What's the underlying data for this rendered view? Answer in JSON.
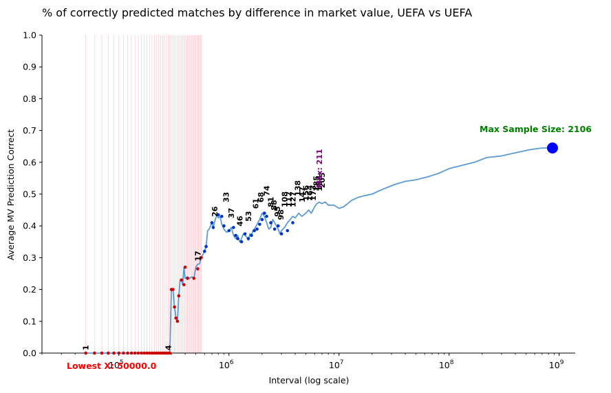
{
  "chart_data": {
    "type": "line",
    "title": "% of correctly predicted matches by difference in market value, UEFA vs UEFA",
    "xlabel": "Interval (log scale)",
    "ylabel": "Average MV Prediction Correct",
    "x_scale": "log",
    "xlim": [
      20000,
      1400000000
    ],
    "ylim": [
      0,
      1.0
    ],
    "x_ticks": [
      {
        "value": 100000,
        "base": "10",
        "exp": "5"
      },
      {
        "value": 1000000,
        "base": "10",
        "exp": "6"
      },
      {
        "value": 10000000,
        "base": "10",
        "exp": "7"
      },
      {
        "value": 100000000,
        "base": "10",
        "exp": "8"
      },
      {
        "value": 1000000000,
        "base": "10",
        "exp": "9"
      }
    ],
    "y_ticks": [
      "0.0",
      "0.1",
      "0.2",
      "0.3",
      "0.4",
      "0.5",
      "0.6",
      "0.7",
      "0.8",
      "0.9",
      "1.0"
    ],
    "line_color": "#5b9bd5",
    "vline_color": "#ffb6c1",
    "series": [
      {
        "x": [
          50000,
          60000,
          70000,
          80000,
          90000,
          100000,
          110000,
          120000,
          130000,
          140000,
          150000,
          160000,
          170000,
          180000,
          190000,
          200000,
          210000,
          220000,
          230000,
          240000,
          250000,
          260000,
          270000,
          280000,
          290000,
          300000,
          310000,
          320000,
          330000,
          340000,
          350000,
          360000,
          370000,
          380000,
          390000,
          400000,
          420000,
          440000,
          460000,
          480000,
          500000,
          520000,
          540000,
          560000,
          600000,
          620000,
          640000,
          660000,
          700000,
          720000,
          750000,
          780000,
          800000,
          830000,
          860000,
          900000,
          950000,
          1000000,
          1050000,
          1100000,
          1150000,
          1200000,
          1250000,
          1300000,
          1350000,
          1400000,
          1450000,
          1500000,
          1550000,
          1600000,
          1650000,
          1700000,
          1800000,
          1900000,
          2000000,
          2100000,
          2200000,
          2300000,
          2400000,
          2500000,
          2600000,
          2700000,
          2800000,
          2900000,
          3000000,
          3200000,
          3400000,
          3600000,
          3800000,
          4000000,
          4300000,
          4600000,
          5000000,
          5300000,
          5600000,
          6000000,
          6300000,
          6600000,
          7000000,
          7500000,
          8000000,
          9000000,
          10000000,
          11000000,
          12000000,
          13000000,
          15000000,
          17000000,
          20000000,
          23000000,
          27000000,
          32000000,
          40000000,
          50000000,
          65000000,
          80000000,
          100000000,
          130000000,
          170000000,
          220000000,
          300000000,
          400000000,
          550000000,
          700000000,
          870000000
        ],
        "y": [
          0,
          0,
          0,
          0,
          0,
          0,
          0,
          0,
          0,
          0,
          0,
          0,
          0,
          0,
          0,
          0,
          0,
          0,
          0,
          0,
          0,
          0,
          0,
          0,
          0.0,
          0.2,
          0.2,
          0.145,
          0.11,
          0.1,
          0.18,
          0.23,
          0.23,
          0.215,
          0.27,
          0.235,
          0.24,
          0.235,
          0.24,
          0.235,
          0.27,
          0.28,
          0.28,
          0.3,
          0.32,
          0.335,
          0.385,
          0.39,
          0.41,
          0.395,
          0.42,
          0.435,
          0.425,
          0.43,
          0.405,
          0.39,
          0.38,
          0.385,
          0.395,
          0.37,
          0.36,
          0.37,
          0.35,
          0.36,
          0.375,
          0.37,
          0.365,
          0.355,
          0.375,
          0.37,
          0.385,
          0.39,
          0.405,
          0.42,
          0.44,
          0.43,
          0.41,
          0.39,
          0.395,
          0.42,
          0.41,
          0.4,
          0.39,
          0.375,
          0.385,
          0.395,
          0.41,
          0.42,
          0.43,
          0.425,
          0.44,
          0.43,
          0.44,
          0.45,
          0.44,
          0.46,
          0.47,
          0.475,
          0.47,
          0.475,
          0.465,
          0.465,
          0.455,
          0.46,
          0.47,
          0.48,
          0.49,
          0.495,
          0.5,
          0.51,
          0.52,
          0.53,
          0.54,
          0.545,
          0.555,
          0.565,
          0.58,
          0.59,
          0.6,
          0.615,
          0.62,
          0.63,
          0.64,
          0.645,
          0.645
        ]
      }
    ],
    "red_points": {
      "x": [
        50000,
        60000,
        70000,
        80000,
        90000,
        100000,
        110000,
        120000,
        130000,
        140000,
        150000,
        160000,
        170000,
        180000,
        190000,
        200000,
        210000,
        220000,
        230000,
        240000,
        250000,
        260000,
        270000,
        280000,
        290000,
        300000,
        310000,
        320000,
        330000,
        340000,
        350000,
        370000,
        390000,
        400000,
        420000,
        480000,
        520000,
        560000
      ],
      "y": [
        0,
        0,
        0,
        0,
        0,
        0,
        0,
        0,
        0,
        0,
        0,
        0,
        0,
        0,
        0,
        0,
        0,
        0,
        0,
        0,
        0,
        0,
        0,
        0,
        0,
        0.2,
        0.2,
        0.145,
        0.11,
        0.1,
        0.18,
        0.23,
        0.215,
        0.27,
        0.235,
        0.235,
        0.265,
        0.3
      ]
    },
    "blue_points": {
      "x": [
        600000,
        620000,
        700000,
        720000,
        800000,
        860000,
        900000,
        1000000,
        1100000,
        1150000,
        1200000,
        1300000,
        1400000,
        1500000,
        1600000,
        1700000,
        1800000,
        1900000,
        2000000,
        2100000,
        2200000,
        2400000,
        2600000,
        2800000,
        3000000,
        3400000,
        3800000
      ],
      "y": [
        0.32,
        0.335,
        0.41,
        0.395,
        0.435,
        0.43,
        0.4,
        0.385,
        0.395,
        0.37,
        0.36,
        0.35,
        0.375,
        0.36,
        0.37,
        0.385,
        0.39,
        0.405,
        0.42,
        0.44,
        0.43,
        0.41,
        0.39,
        0.4,
        0.375,
        0.385,
        0.41
      ]
    },
    "annotations": [
      {
        "text": "1",
        "x": 50000,
        "y": 0.0
      },
      {
        "text": "4",
        "x": 280000,
        "y": 0.0
      },
      {
        "text": "17",
        "x": 520000,
        "y": 0.28
      },
      {
        "text": "26",
        "x": 740000,
        "y": 0.42
      },
      {
        "text": "33",
        "x": 940000,
        "y": 0.465
      },
      {
        "text": "37",
        "x": 1050000,
        "y": 0.415
      },
      {
        "text": "46",
        "x": 1250000,
        "y": 0.39
      },
      {
        "text": "53",
        "x": 1500000,
        "y": 0.405
      },
      {
        "text": "61",
        "x": 1750000,
        "y": 0.445
      },
      {
        "text": "68",
        "x": 1950000,
        "y": 0.465
      },
      {
        "text": "74",
        "x": 2200000,
        "y": 0.485
      },
      {
        "text": "81",
        "x": 2400000,
        "y": 0.45
      },
      {
        "text": "88",
        "x": 2550000,
        "y": 0.44
      },
      {
        "text": "95",
        "x": 2750000,
        "y": 0.42
      },
      {
        "text": "98",
        "x": 2950000,
        "y": 0.41
      },
      {
        "text": "108",
        "x": 3200000,
        "y": 0.45
      },
      {
        "text": "117",
        "x": 3500000,
        "y": 0.45
      },
      {
        "text": "127",
        "x": 3800000,
        "y": 0.45
      },
      {
        "text": "138",
        "x": 4200000,
        "y": 0.485
      },
      {
        "text": "147",
        "x": 4600000,
        "y": 0.465
      },
      {
        "text": "156",
        "x": 5000000,
        "y": 0.47
      },
      {
        "text": "164",
        "x": 5400000,
        "y": 0.47
      },
      {
        "text": "173",
        "x": 5800000,
        "y": 0.47
      },
      {
        "text": "185",
        "x": 6200000,
        "y": 0.5
      },
      {
        "text": "193",
        "x": 6600000,
        "y": 0.5
      },
      {
        "text": "205",
        "x": 7000000,
        "y": 0.51
      }
    ],
    "lowest_x_label": "Lowest X: 50000.0",
    "max_label": "Max: 211",
    "max_label_x": 7200000,
    "max_sample_label": "Max Sample Size: 2106",
    "max_sample_point": {
      "x": 870000000,
      "y": 0.645
    },
    "vertical_lines_x": [
      50000,
      60000,
      70000,
      80000,
      90000,
      100000,
      110000,
      120000,
      130000,
      140000,
      150000,
      160000,
      170000,
      180000,
      190000,
      200000,
      210000,
      220000,
      230000,
      240000,
      250000,
      260000,
      270000,
      280000,
      290000,
      300000,
      310000,
      320000,
      330000,
      340000,
      350000,
      360000,
      370000,
      380000,
      390000,
      400000,
      410000,
      420000,
      430000,
      440000,
      450000,
      460000,
      470000,
      480000,
      490000,
      500000,
      510000,
      520000,
      530000,
      540000,
      550000,
      560000
    ]
  }
}
